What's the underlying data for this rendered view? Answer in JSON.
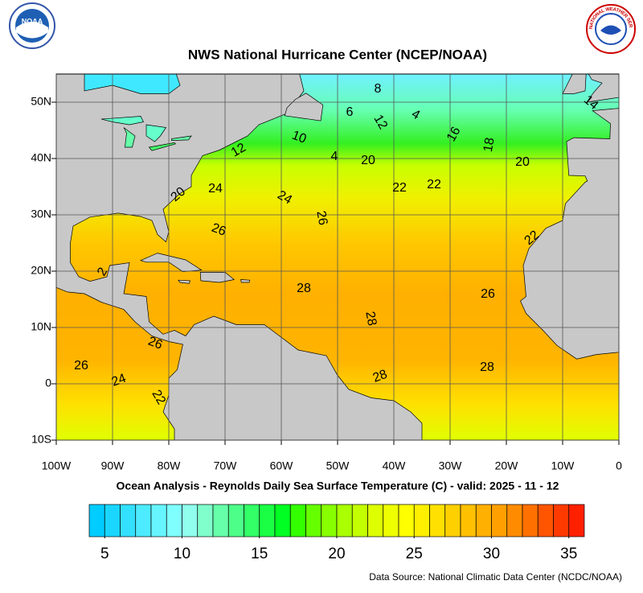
{
  "header": {
    "title": "NWS National Hurricane Center (NCEP/NOAA)",
    "logo_left": "NOAA",
    "logo_right": "NATIONAL WEATHER SERVICE"
  },
  "map": {
    "xlim": [
      -100,
      0
    ],
    "ylim": [
      -10,
      55
    ],
    "xticks": [
      {
        "value": -100,
        "label": "100W"
      },
      {
        "value": -90,
        "label": "90W"
      },
      {
        "value": -80,
        "label": "80W"
      },
      {
        "value": -70,
        "label": "70W"
      },
      {
        "value": -60,
        "label": "60W"
      },
      {
        "value": -50,
        "label": "50W"
      },
      {
        "value": -40,
        "label": "40W"
      },
      {
        "value": -30,
        "label": "30W"
      },
      {
        "value": -20,
        "label": "20W"
      },
      {
        "value": -10,
        "label": "10W"
      },
      0
    ],
    "yticks": [
      {
        "value": 50,
        "label": "50N"
      },
      {
        "value": 40,
        "label": "40N"
      },
      {
        "value": 30,
        "label": "30N"
      },
      {
        "value": 20,
        "label": "20N"
      },
      {
        "value": 10,
        "label": "10N"
      },
      0,
      {
        "value": -10,
        "label": "10S"
      }
    ],
    "grid": true,
    "land_color": "#c8c8c8",
    "contour_labels": [
      8,
      6,
      4,
      12,
      14,
      16,
      18,
      10,
      4,
      20,
      12,
      20,
      24,
      24,
      22,
      22,
      26,
      20,
      26,
      22,
      2,
      28,
      26,
      28,
      26,
      26,
      24,
      28,
      28,
      22
    ]
  },
  "caption": "Ocean Analysis - Reynolds Daily Sea Surface Temperature (C) - valid: 2025 - 11 - 12",
  "colorbar": {
    "range": [
      4,
      36
    ],
    "ticks": [
      5,
      10,
      15,
      20,
      25,
      30,
      35
    ],
    "colors": [
      "#00ccff",
      "#1ad6ff",
      "#33e0ff",
      "#4debff",
      "#66f5ff",
      "#80ffff",
      "#90ffee",
      "#80ffcc",
      "#66ffaa",
      "#4dff88",
      "#33ff66",
      "#1aff44",
      "#00ff22",
      "#33ff00",
      "#66ff00",
      "#88ff00",
      "#aaff00",
      "#c4ff00",
      "#ddff00",
      "#eeff00",
      "#ffff00",
      "#fff000",
      "#ffe000",
      "#ffd000",
      "#ffc000",
      "#ffb000",
      "#ffa000",
      "#ff8c00",
      "#ff7000",
      "#ff5500",
      "#ff3a00",
      "#ff2000"
    ]
  },
  "source": "Data Source: National Climatic Data Center (NCDC/NOAA)"
}
